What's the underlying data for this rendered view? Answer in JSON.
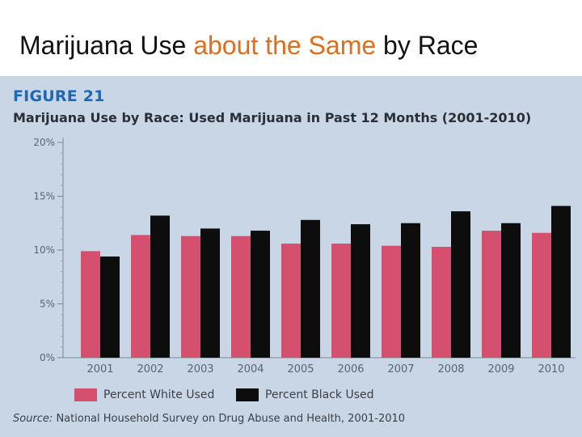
{
  "slide": {
    "title_part1": "Marijuana Use ",
    "title_accent": "about the Same",
    "title_part2": " by Race"
  },
  "colors": {
    "white_series": "#d4506e",
    "black_series": "#0d0d0d",
    "accent": "#e06d1b",
    "panel": "#c9d6e6",
    "figure_label": "#1f66b3"
  },
  "figure": {
    "label": "FIGURE 21",
    "source_prefix": "Source:",
    "source_text": " National Household Survey on Drug Abuse and Health, 2001-2010"
  },
  "chart_data": {
    "type": "bar",
    "title": "Marijuana Use by Race: Used Marijuana in Past 12 Months (2001-2010)",
    "xlabel": "",
    "ylabel": "",
    "categories": [
      "2001",
      "2002",
      "2003",
      "2004",
      "2005",
      "2006",
      "2007",
      "2008",
      "2009",
      "2010"
    ],
    "series": [
      {
        "name": "Percent White Used",
        "values": [
          9.9,
          11.4,
          11.3,
          11.3,
          10.6,
          10.6,
          10.4,
          10.3,
          11.8,
          11.6
        ]
      },
      {
        "name": "Percent Black Used",
        "values": [
          9.4,
          13.2,
          12.0,
          11.8,
          12.8,
          12.4,
          12.5,
          13.6,
          12.5,
          14.1
        ]
      }
    ],
    "ylim": [
      0,
      20
    ],
    "yticks": [
      0,
      5,
      10,
      15,
      20
    ],
    "ytick_labels": [
      "0%",
      "5%",
      "10%",
      "15%",
      "20%"
    ],
    "grid": false,
    "legend_position": "bottom-left"
  }
}
